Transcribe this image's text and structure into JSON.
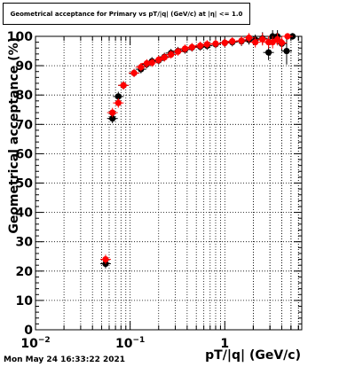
{
  "chart_data": {
    "type": "scatter",
    "title": "Geometrical acceptance for Primary vs pT/|q| (GeV/c) at |η| <= 1.0",
    "xlabel": "pT/|q| (GeV/c)",
    "ylabel": "Geometrical acceptance (%)",
    "xscale": "log",
    "xlim": [
      0.01,
      6.5
    ],
    "ylim": [
      0,
      100
    ],
    "grid": true,
    "x_ticks": [
      {
        "value": 0.01,
        "base": "10",
        "exp": "−2"
      },
      {
        "value": 0.1,
        "base": "10",
        "exp": "−1"
      },
      {
        "value": 1,
        "base": "1",
        "exp": ""
      }
    ],
    "y_ticks": [
      "0",
      "10",
      "20",
      "30",
      "40",
      "50",
      "60",
      "70",
      "80",
      "90",
      "100"
    ],
    "series": [
      {
        "color": "#000000",
        "points": [
          {
            "x": 0.055,
            "y": 22.5,
            "err": 1.0
          },
          {
            "x": 0.065,
            "y": 72.0,
            "err": 1.0
          },
          {
            "x": 0.075,
            "y": 79.5,
            "err": 1.0
          },
          {
            "x": 0.085,
            "y": 83.3,
            "err": 0.8
          },
          {
            "x": 0.11,
            "y": 87.5,
            "err": 0.8
          },
          {
            "x": 0.13,
            "y": 88.8,
            "err": 0.8
          },
          {
            "x": 0.15,
            "y": 90.5,
            "err": 0.8
          },
          {
            "x": 0.17,
            "y": 91.5,
            "err": 0.8
          },
          {
            "x": 0.2,
            "y": 91.8,
            "err": 0.8
          },
          {
            "x": 0.23,
            "y": 93.0,
            "err": 0.8
          },
          {
            "x": 0.27,
            "y": 94.3,
            "err": 0.8
          },
          {
            "x": 0.32,
            "y": 95.0,
            "err": 0.8
          },
          {
            "x": 0.38,
            "y": 95.5,
            "err": 0.8
          },
          {
            "x": 0.45,
            "y": 96.2,
            "err": 0.8
          },
          {
            "x": 0.55,
            "y": 96.5,
            "err": 0.8
          },
          {
            "x": 0.65,
            "y": 96.8,
            "err": 0.8
          },
          {
            "x": 0.8,
            "y": 97.3,
            "err": 0.8
          },
          {
            "x": 1.0,
            "y": 97.8,
            "err": 0.8
          },
          {
            "x": 1.2,
            "y": 98.0,
            "err": 0.8
          },
          {
            "x": 1.5,
            "y": 98.3,
            "err": 1.0
          },
          {
            "x": 1.8,
            "y": 98.8,
            "err": 1.0
          },
          {
            "x": 2.1,
            "y": 98.8,
            "err": 1.2
          },
          {
            "x": 2.5,
            "y": 99.3,
            "err": 1.5
          },
          {
            "x": 2.9,
            "y": 94.5,
            "err": 2.0
          },
          {
            "x": 3.2,
            "y": 100.0,
            "err": 1.5
          },
          {
            "x": 3.6,
            "y": 100.0,
            "err": 1.5
          },
          {
            "x": 4.0,
            "y": 97.5,
            "err": 1.5
          },
          {
            "x": 4.5,
            "y": 95.0,
            "err": 4.0
          },
          {
            "x": 5.2,
            "y": 100.0,
            "err": 0.5
          }
        ]
      },
      {
        "color": "#ff0000",
        "points": [
          {
            "x": 0.055,
            "y": 24.0,
            "err": 1.0
          },
          {
            "x": 0.065,
            "y": 74.0,
            "err": 1.0
          },
          {
            "x": 0.075,
            "y": 77.3,
            "err": 1.0
          },
          {
            "x": 0.085,
            "y": 83.3,
            "err": 0.8
          },
          {
            "x": 0.11,
            "y": 87.5,
            "err": 0.8
          },
          {
            "x": 0.13,
            "y": 89.5,
            "err": 0.8
          },
          {
            "x": 0.15,
            "y": 90.8,
            "err": 0.8
          },
          {
            "x": 0.17,
            "y": 91.0,
            "err": 0.8
          },
          {
            "x": 0.2,
            "y": 92.0,
            "err": 0.8
          },
          {
            "x": 0.23,
            "y": 92.8,
            "err": 0.8
          },
          {
            "x": 0.27,
            "y": 93.8,
            "err": 0.8
          },
          {
            "x": 0.32,
            "y": 94.8,
            "err": 0.8
          },
          {
            "x": 0.38,
            "y": 95.8,
            "err": 0.8
          },
          {
            "x": 0.45,
            "y": 96.3,
            "err": 0.8
          },
          {
            "x": 0.55,
            "y": 96.8,
            "err": 0.8
          },
          {
            "x": 0.65,
            "y": 97.3,
            "err": 0.8
          },
          {
            "x": 0.8,
            "y": 97.5,
            "err": 0.8
          },
          {
            "x": 1.0,
            "y": 97.8,
            "err": 0.8
          },
          {
            "x": 1.2,
            "y": 98.3,
            "err": 0.8
          },
          {
            "x": 1.5,
            "y": 98.5,
            "err": 1.0
          },
          {
            "x": 1.8,
            "y": 99.5,
            "err": 1.0
          },
          {
            "x": 2.1,
            "y": 98.0,
            "err": 1.2
          },
          {
            "x": 2.5,
            "y": 99.0,
            "err": 1.5
          },
          {
            "x": 2.9,
            "y": 98.0,
            "err": 1.5
          },
          {
            "x": 3.2,
            "y": 98.0,
            "err": 1.5
          },
          {
            "x": 3.6,
            "y": 99.0,
            "err": 1.5
          },
          {
            "x": 4.0,
            "y": 97.8,
            "err": 1.5
          },
          {
            "x": 4.6,
            "y": 100.0,
            "err": 0.5
          }
        ]
      }
    ]
  },
  "footer": {
    "date": "Mon May 24 16:33:22 2021"
  }
}
